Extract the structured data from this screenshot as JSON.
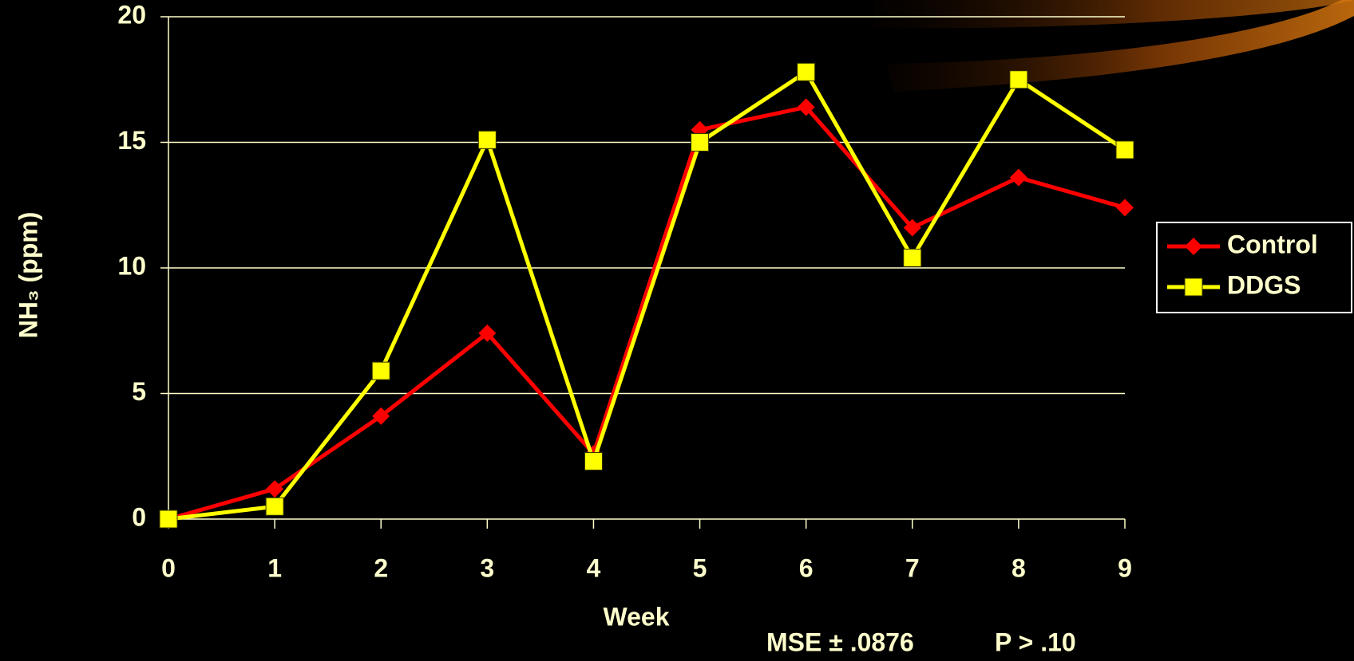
{
  "chart_data": {
    "type": "line",
    "x_label": "Week",
    "y_label": "NH₃ (ppm)",
    "annotations": [
      "MSE ± .0876",
      "P > .10"
    ],
    "x": [
      0,
      1,
      2,
      3,
      4,
      5,
      6,
      7,
      8,
      9
    ],
    "xlim": [
      0,
      9
    ],
    "xticks": [
      0,
      1,
      2,
      3,
      4,
      5,
      6,
      7,
      8,
      9
    ],
    "ylim": [
      0,
      20
    ],
    "yticks": [
      0,
      5,
      10,
      15,
      20
    ],
    "grid": true,
    "legend": "right",
    "series": [
      {
        "name": "Control",
        "color": "#ff0000",
        "marker": "diamond",
        "values": [
          0,
          1.2,
          4.1,
          7.4,
          2.6,
          15.5,
          16.4,
          11.6,
          13.6,
          12.4
        ]
      },
      {
        "name": "DDGS",
        "color": "#ffff00",
        "marker": "square",
        "values": [
          0,
          0.5,
          5.9,
          15.1,
          2.3,
          15.0,
          17.8,
          10.4,
          17.5,
          14.7
        ]
      }
    ]
  }
}
